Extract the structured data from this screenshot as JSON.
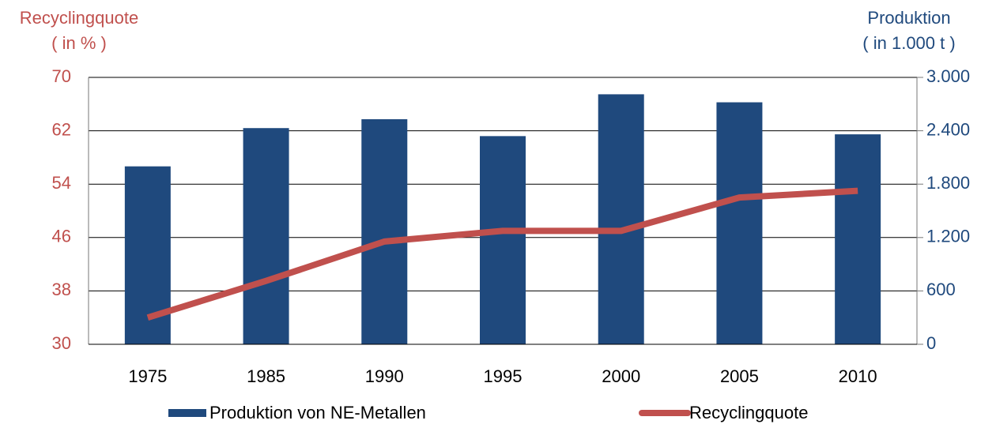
{
  "chart_data": {
    "type": "bar",
    "y_title": [
      "Recyclingquote",
      "( in % )"
    ],
    "y2_title": [
      "Produktion",
      "( in 1.000 t )"
    ],
    "categories": [
      "1975",
      "1985",
      "1990",
      "1995",
      "2000",
      "2005",
      "2010"
    ],
    "series": [
      {
        "name": "Produktion von NE-Metallen",
        "color": "#1f497d",
        "type": "bar",
        "axis": "y2",
        "values": [
          2000,
          2430,
          2530,
          2340,
          2810,
          2720,
          2360
        ]
      },
      {
        "name": "Recyclingquote",
        "color": "#c0504d",
        "type": "line",
        "axis": "y",
        "values": [
          34,
          39.5,
          45.4,
          47,
          47,
          52,
          53
        ]
      }
    ],
    "ylim": [
      30,
      70
    ],
    "yticks": [
      30,
      38,
      46,
      54,
      62,
      70
    ],
    "y_color": "#c0504d",
    "y2lim": [
      0,
      3000
    ],
    "y2ticks": [
      0,
      600,
      {
        "value": 1200,
        "label": "1.200"
      },
      {
        "value": 1800,
        "label": "1.800"
      },
      {
        "value": 2400,
        "label": "2.400"
      },
      {
        "value": 3000,
        "label": "3.000"
      }
    ],
    "y2_color": "#1f497d",
    "grid": true
  }
}
